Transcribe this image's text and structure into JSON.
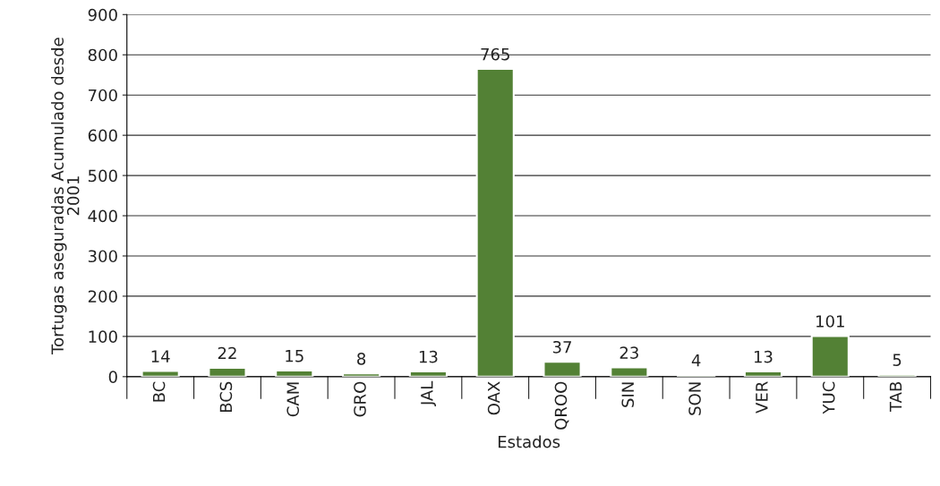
{
  "chart_data": {
    "type": "bar",
    "xlabel": "Estados",
    "ylabel": "Tortugas aseguradas Acumulado desde\n2001",
    "categories": [
      "BC",
      "BCS",
      "CAM",
      "GRO",
      "JAL",
      "OAX",
      "QROO",
      "SIN",
      "SON",
      "VER",
      "YUC",
      "TAB"
    ],
    "values": [
      14,
      22,
      15,
      8,
      13,
      765,
      37,
      23,
      4,
      13,
      101,
      5
    ],
    "color": "#538135",
    "ylim": [
      0,
      900
    ],
    "yticks": [
      0,
      100,
      200,
      300,
      400,
      500,
      600,
      700,
      800,
      900
    ],
    "grid": "y",
    "data_labels": true
  }
}
